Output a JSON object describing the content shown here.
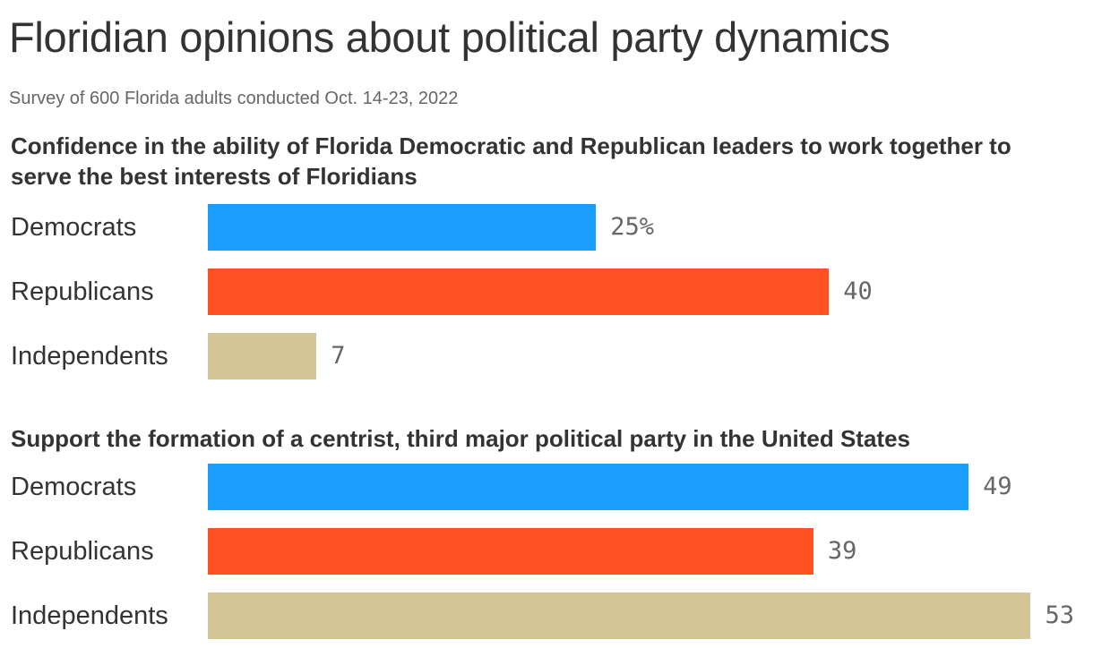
{
  "title": "Floridian opinions about political party dynamics",
  "subtitle": "Survey of 600 Florida adults conducted Oct. 14-23, 2022",
  "colors": {
    "Democrats": "#199efd",
    "Republicans": "#ff5121",
    "Independents": "#d3c596"
  },
  "chart_data": [
    {
      "type": "bar",
      "orientation": "horizontal",
      "title": "Confidence in the ability of Florida Democratic and Republican leaders to work together to serve the best interests of Floridians",
      "categories": [
        "Democrats",
        "Republicans",
        "Independents"
      ],
      "values": [
        25,
        40,
        7
      ],
      "value_labels": [
        "25%",
        "40",
        "7"
      ],
      "unit": "%",
      "grid": false
    },
    {
      "type": "bar",
      "orientation": "horizontal",
      "title": "Support the formation of a centrist, third major political party in the United States",
      "categories": [
        "Democrats",
        "Republicans",
        "Independents"
      ],
      "values": [
        49,
        39,
        53
      ],
      "value_labels": [
        "49",
        "39",
        "53"
      ],
      "unit": "%",
      "grid": false
    }
  ]
}
